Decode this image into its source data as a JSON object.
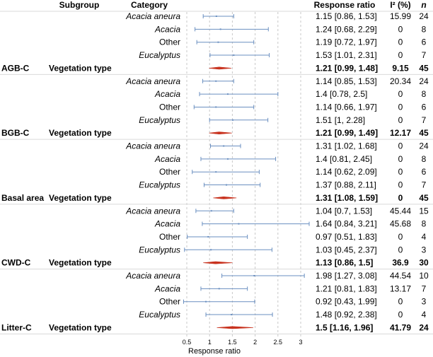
{
  "chart_data": {
    "type": "forest",
    "headers": {
      "subgroup": "Subgroup",
      "category": "Category",
      "response_ratio": "Response ratio",
      "i2": "I² (%)",
      "n": "n"
    },
    "xlabel": "Response ratio",
    "x_ticks": [
      0.5,
      1,
      1.5,
      2,
      2.5,
      3
    ],
    "x_tick_labels": [
      "0.5",
      "1",
      "1.5",
      "2",
      "2.5",
      "3"
    ],
    "x_range": [
      0.5,
      3.15
    ],
    "reference_line": 1,
    "colors": {
      "ci": "#6a8fc0",
      "pooled": "#c8321e",
      "grid": "#c8c8c8",
      "divider": "#d9d9d9"
    },
    "groups": [
      {
        "response": "AGB-C",
        "subgroup": "Vegetation type",
        "rows": [
          {
            "category": "Acacia aneura",
            "italic": true,
            "est": 1.15,
            "lo": 0.86,
            "hi": 1.53,
            "label": "1.15  [0.86, 1.53]",
            "i2": "15.99",
            "n": "24"
          },
          {
            "category": "Acacia",
            "italic": true,
            "est": 1.24,
            "lo": 0.68,
            "hi": 2.29,
            "label": "1.24  [0.68, 2.29]",
            "i2": "0",
            "n": "8"
          },
          {
            "category": "Other",
            "italic": false,
            "est": 1.19,
            "lo": 0.72,
            "hi": 1.97,
            "label": "1.19  [0.72, 1.97]",
            "i2": "0",
            "n": "6"
          },
          {
            "category": "Eucalyptus",
            "italic": true,
            "est": 1.53,
            "lo": 1.01,
            "hi": 2.31,
            "label": "1.53  [1.01, 2.31]",
            "i2": "0",
            "n": "7"
          }
        ],
        "pooled": {
          "est": 1.21,
          "lo": 0.99,
          "hi": 1.48,
          "label": "1.21  [0.99, 1.48]",
          "i2": "9.15",
          "n": "45"
        }
      },
      {
        "response": "BGB-C",
        "subgroup": "Vegetation type",
        "rows": [
          {
            "category": "Acacia aneura",
            "italic": true,
            "est": 1.14,
            "lo": 0.85,
            "hi": 1.53,
            "label": "1.14  [0.85, 1.53]",
            "i2": "20.34",
            "n": "24"
          },
          {
            "category": "Acacia",
            "italic": true,
            "est": 1.4,
            "lo": 0.78,
            "hi": 2.5,
            "label": "1.4  [0.78, 2.5]",
            "i2": "0",
            "n": "8"
          },
          {
            "category": "Other",
            "italic": false,
            "est": 1.14,
            "lo": 0.66,
            "hi": 1.97,
            "label": "1.14  [0.66, 1.97]",
            "i2": "0",
            "n": "6"
          },
          {
            "category": "Eucalyptus",
            "italic": true,
            "est": 1.51,
            "lo": 1.0,
            "hi": 2.28,
            "label": "1.51  [1, 2.28]",
            "i2": "0",
            "n": "7"
          }
        ],
        "pooled": {
          "est": 1.21,
          "lo": 0.99,
          "hi": 1.49,
          "label": "1.21  [0.99, 1.49]",
          "i2": "12.17",
          "n": "45"
        }
      },
      {
        "response": "Basal area",
        "subgroup": "Vegetation type",
        "rows": [
          {
            "category": "Acacia aneura",
            "italic": true,
            "est": 1.31,
            "lo": 1.02,
            "hi": 1.68,
            "label": "1.31  [1.02, 1.68]",
            "i2": "0",
            "n": "24"
          },
          {
            "category": "Acacia",
            "italic": true,
            "est": 1.4,
            "lo": 0.81,
            "hi": 2.45,
            "label": "1.4  [0.81, 2.45]",
            "i2": "0",
            "n": "8"
          },
          {
            "category": "Other",
            "italic": false,
            "est": 1.14,
            "lo": 0.62,
            "hi": 2.09,
            "label": "1.14  [0.62, 2.09]",
            "i2": "0",
            "n": "6"
          },
          {
            "category": "Eucalyptus",
            "italic": true,
            "est": 1.37,
            "lo": 0.88,
            "hi": 2.11,
            "label": "1.37  [0.88, 2.11]",
            "i2": "0",
            "n": "7"
          }
        ],
        "pooled": {
          "est": 1.31,
          "lo": 1.08,
          "hi": 1.59,
          "label": "1.31  [1.08, 1.59]",
          "i2": "0",
          "n": "45"
        }
      },
      {
        "response": "CWD-C",
        "subgroup": "Vegetation type",
        "rows": [
          {
            "category": "Acacia aneura",
            "italic": true,
            "est": 1.04,
            "lo": 0.7,
            "hi": 1.53,
            "label": "1.04  [0.7, 1.53]",
            "i2": "45.44",
            "n": "15"
          },
          {
            "category": "Acacia",
            "italic": true,
            "est": 1.64,
            "lo": 0.84,
            "hi": 3.21,
            "label": "1.64  [0.84, 3.21]",
            "i2": "45.68",
            "n": "8"
          },
          {
            "category": "Other",
            "italic": false,
            "est": 0.97,
            "lo": 0.51,
            "hi": 1.83,
            "label": "0.97  [0.51, 1.83]",
            "i2": "0",
            "n": "4"
          },
          {
            "category": "Eucalyptus",
            "italic": true,
            "est": 1.03,
            "lo": 0.45,
            "hi": 2.37,
            "label": "1.03  [0.45, 2.37]",
            "i2": "0",
            "n": "3"
          }
        ],
        "pooled": {
          "est": 1.13,
          "lo": 0.86,
          "hi": 1.5,
          "label": "1.13  [0.86, 1.5]",
          "i2": "36.9",
          "n": "30"
        }
      },
      {
        "response": "Litter-C",
        "subgroup": "Vegetation type",
        "rows": [
          {
            "category": "Acacia aneura",
            "italic": true,
            "est": 1.98,
            "lo": 1.27,
            "hi": 3.08,
            "label": "1.98  [1.27, 3.08]",
            "i2": "44.54",
            "n": "10"
          },
          {
            "category": "Acacia",
            "italic": true,
            "est": 1.21,
            "lo": 0.81,
            "hi": 1.83,
            "label": "1.21  [0.81, 1.83]",
            "i2": "13.17",
            "n": "7"
          },
          {
            "category": "Other",
            "italic": false,
            "est": 0.92,
            "lo": 0.43,
            "hi": 1.99,
            "label": "0.92  [0.43, 1.99]",
            "i2": "0",
            "n": "3"
          },
          {
            "category": "Eucalyptus",
            "italic": true,
            "est": 1.48,
            "lo": 0.92,
            "hi": 2.38,
            "label": "1.48  [0.92, 2.38]",
            "i2": "0",
            "n": "4"
          }
        ],
        "pooled": {
          "est": 1.5,
          "lo": 1.16,
          "hi": 1.96,
          "label": "1.5  [1.16, 1.96]",
          "i2": "41.79",
          "n": "24"
        }
      }
    ]
  }
}
